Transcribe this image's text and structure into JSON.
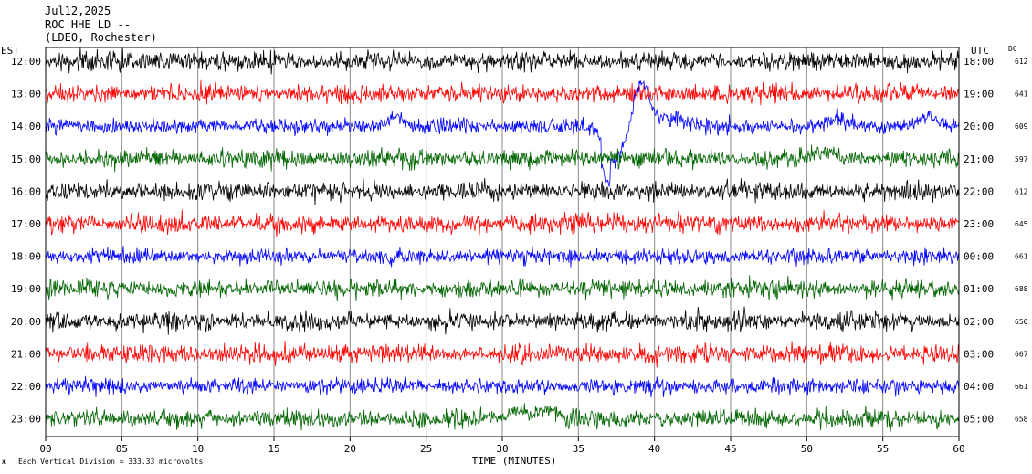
{
  "header": {
    "date": "Jul12,2025",
    "station": "ROC HHE LD --",
    "network": "(LDEO, Rochester)"
  },
  "chart_data": {
    "type": "line",
    "title": "",
    "xlabel": "TIME (MINUTES)",
    "ylabel": "",
    "xlim": [
      0,
      60
    ],
    "x_ticks": [
      "00",
      "05",
      "10",
      "15",
      "20",
      "25",
      "30",
      "35",
      "40",
      "45",
      "50",
      "55",
      "60"
    ],
    "left_axis_label": "EST",
    "right_axis_label": "UTC",
    "dc_label": "DC",
    "rows": [
      {
        "est": "12:00",
        "utc": "18:00",
        "dc": "612",
        "color": "#000000"
      },
      {
        "est": "13:00",
        "utc": "19:00",
        "dc": "641",
        "color": "#ff0000"
      },
      {
        "est": "14:00",
        "utc": "20:00",
        "dc": "609",
        "color": "#0000ff"
      },
      {
        "est": "15:00",
        "utc": "21:00",
        "dc": "597",
        "color": "#006400"
      },
      {
        "est": "16:00",
        "utc": "22:00",
        "dc": "612",
        "color": "#000000"
      },
      {
        "est": "17:00",
        "utc": "23:00",
        "dc": "645",
        "color": "#ff0000"
      },
      {
        "est": "18:00",
        "utc": "00:00",
        "dc": "661",
        "color": "#0000ff"
      },
      {
        "est": "19:00",
        "utc": "01:00",
        "dc": "688",
        "color": "#006400"
      },
      {
        "est": "20:00",
        "utc": "02:00",
        "dc": "650",
        "color": "#000000"
      },
      {
        "est": "21:00",
        "utc": "03:00",
        "dc": "667",
        "color": "#ff0000"
      },
      {
        "est": "22:00",
        "utc": "04:00",
        "dc": "661",
        "color": "#0000ff"
      },
      {
        "est": "23:00",
        "utc": "05:00",
        "dc": "658",
        "color": "#006400"
      }
    ],
    "events": [
      {
        "row": 2,
        "minute": 37.2,
        "kind": "large-swing"
      },
      {
        "row": 2,
        "minute": 23,
        "kind": "bump"
      },
      {
        "row": 2,
        "minute": 52,
        "kind": "bump"
      },
      {
        "row": 2,
        "minute": 58,
        "kind": "bump"
      },
      {
        "row": 3,
        "minute": 51,
        "kind": "bump"
      },
      {
        "row": 11,
        "minute": 31,
        "kind": "bump"
      },
      {
        "row": 11,
        "minute": 33,
        "kind": "bump"
      }
    ],
    "footer": "Each Vertical Division =  333.33 microvolts"
  }
}
